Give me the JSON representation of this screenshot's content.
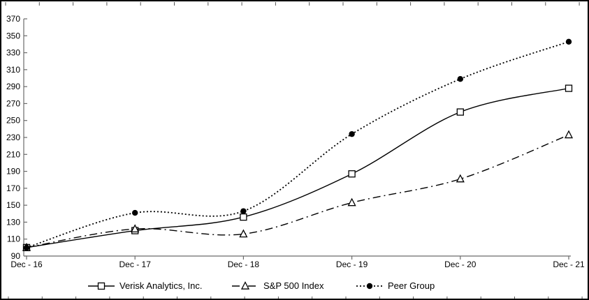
{
  "chart_data": {
    "type": "line",
    "title": "",
    "xlabel": "",
    "ylabel": "",
    "categories": [
      "Dec - 16",
      "Dec - 17",
      "Dec - 18",
      "Dec - 19",
      "Dec - 20",
      "Dec - 21"
    ],
    "series": [
      {
        "name": "Verisk Analytics, Inc.",
        "values": [
          100,
          120,
          136,
          187,
          260,
          288
        ],
        "marker": "open-square",
        "line_style": "solid"
      },
      {
        "name": "S&P 500 Index",
        "values": [
          100,
          122,
          116,
          153,
          181,
          233
        ],
        "marker": "open-triangle",
        "line_style": "dash-dot"
      },
      {
        "name": "Peer Group",
        "values": [
          100,
          141,
          143,
          234,
          299,
          343
        ],
        "marker": "filled-circle",
        "line_style": "dotted"
      }
    ],
    "ylim": [
      90,
      370
    ],
    "yticks": [
      90,
      110,
      130,
      150,
      170,
      190,
      210,
      230,
      250,
      270,
      290,
      310,
      330,
      350,
      370
    ],
    "grid": false,
    "legend_position": "bottom",
    "smoothed_lines": true,
    "colors": {
      "series_line": "#000000",
      "axis_line": "#6b6b6b",
      "label_text": "#000000",
      "background": "#ffffff",
      "panel_border": "#000000"
    }
  }
}
